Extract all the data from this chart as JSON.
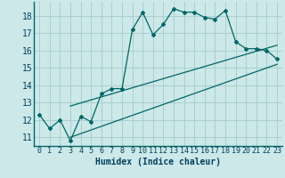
{
  "xlabel": "Humidex (Indice chaleur)",
  "bg_color": "#cce8e8",
  "grid_color": "#aacfcf",
  "line_color": "#006666",
  "xlim": [
    -0.5,
    23.5
  ],
  "ylim": [
    10.5,
    18.8
  ],
  "yticks": [
    11,
    12,
    13,
    14,
    15,
    16,
    17,
    18
  ],
  "xticks": [
    0,
    1,
    2,
    3,
    4,
    5,
    6,
    7,
    8,
    9,
    10,
    11,
    12,
    13,
    14,
    15,
    16,
    17,
    18,
    19,
    20,
    21,
    22,
    23
  ],
  "series1_x": [
    0,
    1,
    2,
    3,
    4,
    5,
    6,
    7,
    8,
    9,
    10,
    11,
    12,
    13,
    14,
    15,
    16,
    17,
    18,
    19,
    20,
    21,
    22,
    23
  ],
  "series1_y": [
    12.3,
    11.5,
    12.0,
    10.8,
    12.2,
    11.9,
    13.5,
    13.8,
    13.8,
    17.2,
    18.2,
    16.9,
    17.5,
    18.4,
    18.2,
    18.2,
    17.9,
    17.8,
    18.3,
    16.5,
    16.1,
    16.1,
    16.0,
    15.5
  ],
  "series2_x": [
    3,
    23
  ],
  "series2_y": [
    11.0,
    15.2
  ],
  "series3_x": [
    3,
    23
  ],
  "series3_y": [
    12.8,
    16.3
  ],
  "xlabel_color": "#004060",
  "xlabel_fontsize": 7,
  "tick_fontsize": 6,
  "ytick_fontsize": 7
}
